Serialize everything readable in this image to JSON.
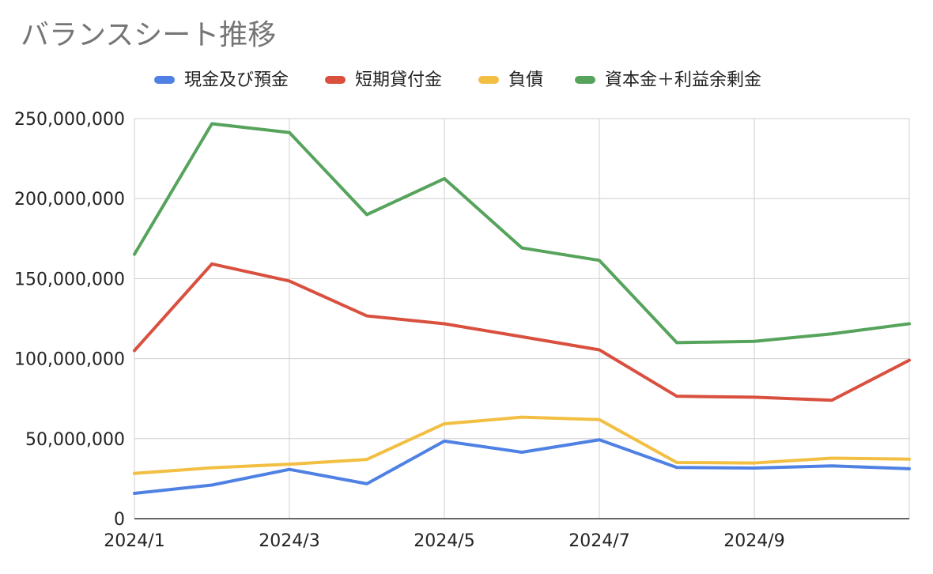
{
  "chart_data": {
    "type": "line",
    "title": "バランスシート推移",
    "xlabel": "",
    "ylabel": "",
    "x": [
      "2024/1",
      "2024/2",
      "2024/3",
      "2024/4",
      "2024/5",
      "2024/6",
      "2024/7",
      "2024/8",
      "2024/9",
      "2024/10",
      "2024/11"
    ],
    "x_tick_labels": [
      "2024/1",
      "2024/3",
      "2024/5",
      "2024/7",
      "2024/9"
    ],
    "ylim": [
      0,
      250000000
    ],
    "y_ticks": [
      0,
      50000000,
      100000000,
      150000000,
      200000000,
      250000000
    ],
    "y_tick_labels": [
      "0",
      "50,000,000",
      "100,000,000",
      "150,000,000",
      "200,000,000",
      "250,000,000"
    ],
    "grid": true,
    "legend_position": "top",
    "series": [
      {
        "name": "現金及び預金",
        "color": "#4f81e4",
        "values": [
          15800000,
          21000000,
          30800000,
          21800000,
          48500000,
          41500000,
          49300000,
          32000000,
          31600000,
          33000000,
          31200000
        ]
      },
      {
        "name": "短期貸付金",
        "color": "#d9503f",
        "values": [
          105000000,
          159200000,
          148500000,
          126700000,
          121800000,
          113700000,
          105500000,
          76500000,
          75900000,
          74000000,
          99000000
        ]
      },
      {
        "name": "負債",
        "color": "#f2bf42",
        "values": [
          28300000,
          31800000,
          34000000,
          37000000,
          59300000,
          63400000,
          61900000,
          35100000,
          34800000,
          37800000,
          37200000
        ]
      },
      {
        "name": "資本金＋利益余剰金",
        "color": "#56a35c",
        "values": [
          165200000,
          246800000,
          241300000,
          190000000,
          212500000,
          169200000,
          161400000,
          110000000,
          110800000,
          115500000,
          121800000
        ]
      }
    ]
  }
}
